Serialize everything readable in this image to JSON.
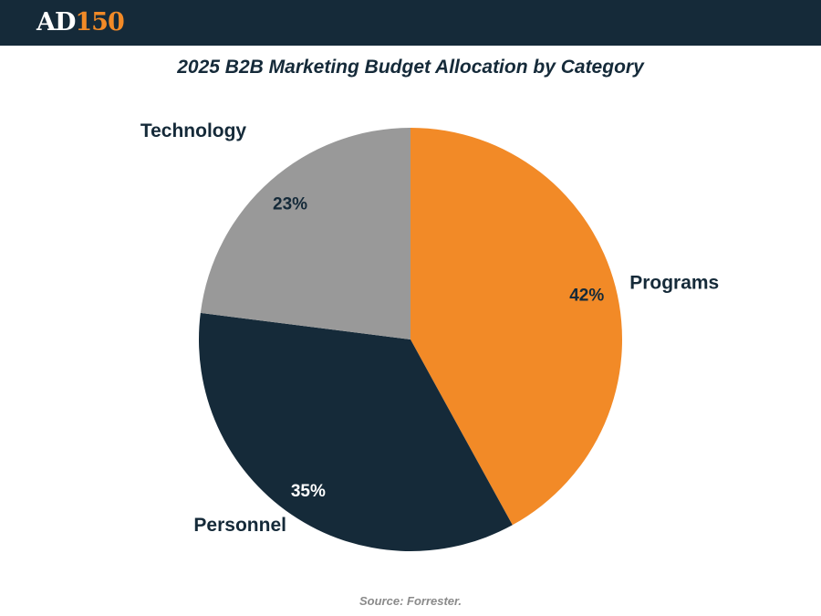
{
  "header": {
    "logo_letters": "AD",
    "logo_number": "150",
    "brand_color": "#f28a27",
    "bar_color": "#152a39"
  },
  "chart_data": {
    "type": "pie",
    "title": "2025 B2B Marketing Budget Allocation by Category",
    "slices": [
      {
        "label": "Programs",
        "value": 42,
        "value_label": "42%",
        "color": "#f28a27",
        "value_label_color": "#152a39"
      },
      {
        "label": "Personnel",
        "value": 35,
        "value_label": "35%",
        "color": "#152a39",
        "value_label_color": "#ffffff"
      },
      {
        "label": "Technology",
        "value": 23,
        "value_label": "23%",
        "color": "#999999",
        "value_label_color": "#152a39"
      }
    ],
    "start": "12 o'clock",
    "direction": "clockwise",
    "source": "Source: Forrester."
  }
}
